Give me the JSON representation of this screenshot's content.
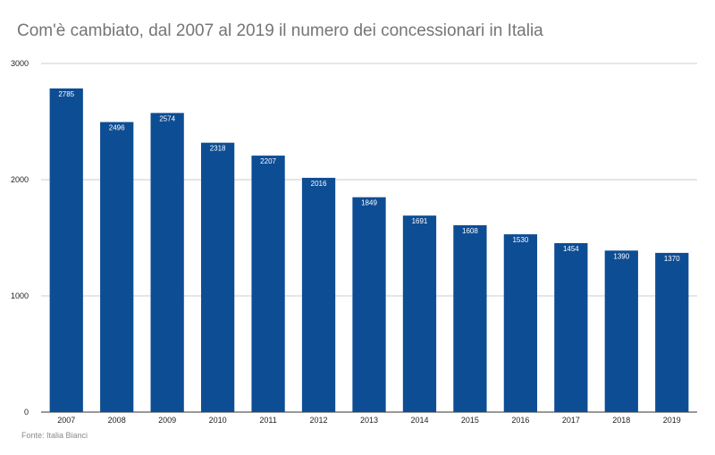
{
  "chart_data": {
    "type": "bar",
    "title": "Com'è cambiato, dal 2007 al 2019 il numero dei concessionari in Italia",
    "categories": [
      "2007",
      "2008",
      "2009",
      "2010",
      "2011",
      "2012",
      "2013",
      "2014",
      "2015",
      "2016",
      "2017",
      "2018",
      "2019"
    ],
    "values": [
      2785,
      2496,
      2574,
      2318,
      2207,
      2016,
      1849,
      1691,
      1608,
      1530,
      1454,
      1390,
      1370
    ],
    "data_labels": [
      "2785",
      "2496",
      "2574",
      "2318",
      "2207",
      "2016",
      "1849",
      "1691",
      "1608",
      "1530",
      "1454",
      "1390",
      "1370"
    ],
    "ylim": [
      0,
      3000
    ],
    "yticks": [
      "0",
      "1000",
      "2000",
      "3000"
    ],
    "xlabel": "",
    "ylabel": "",
    "grid": true,
    "legend": "none",
    "bar_color": "#0d4d94"
  },
  "source": "Fonte: Italia Bianci"
}
